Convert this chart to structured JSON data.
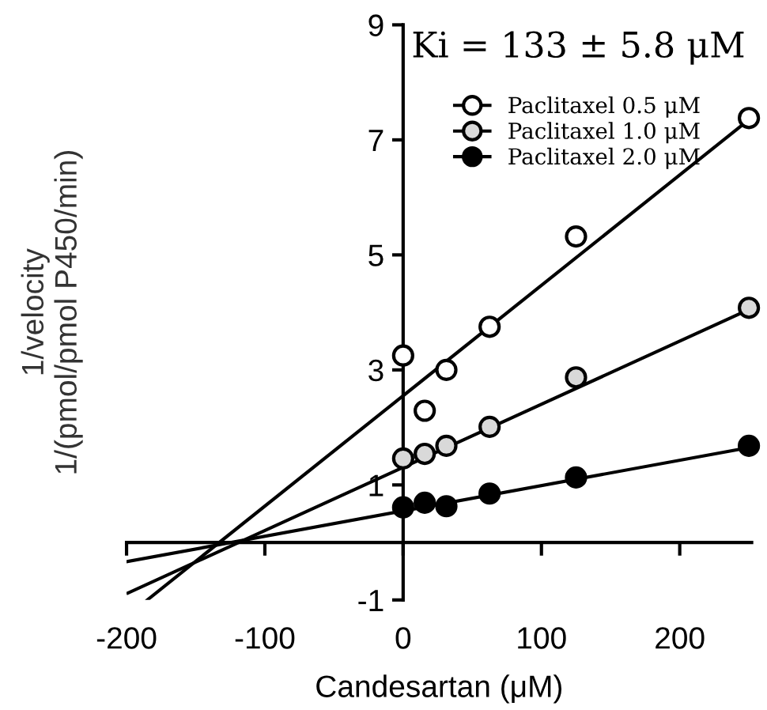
{
  "chart_data": {
    "type": "scatter",
    "xlabel": "Candesartan (μM)",
    "ylabel": "1/velocity\n1/(pmol/pmol P450/min)",
    "annotations": [
      "Ki = 133 ± 5.8 μM"
    ],
    "x": [
      0,
      15.6,
      31.25,
      62.5,
      125,
      250
    ],
    "series": [
      {
        "name": "Paclitaxel 0.5 μM",
        "color": "#ffffff",
        "values": [
          3.25,
          2.29,
          3.0,
          3.75,
          5.32,
          7.38
        ]
      },
      {
        "name": "Paclitaxel 1.0 μM",
        "color": "#d9d9d9",
        "values": [
          1.46,
          1.54,
          1.68,
          2.01,
          2.87,
          4.08
        ]
      },
      {
        "name": "Paclitaxel 2.0 μM",
        "color": "#000000",
        "values": [
          0.61,
          0.69,
          0.63,
          0.85,
          1.13,
          1.68
        ]
      },
      {
        "type": "line",
        "marker": "none",
        "color": "#000000",
        "x": [
          -185,
          250
        ],
        "values": [
          -1.0,
          7.35
        ]
      },
      {
        "type": "line",
        "marker": "none",
        "color": "#000000",
        "x": [
          -199,
          250
        ],
        "values": [
          -0.88,
          4.05
        ]
      },
      {
        "type": "line",
        "marker": "none",
        "color": "#000000",
        "x": [
          -199,
          250
        ],
        "values": [
          -0.33,
          1.65
        ]
      }
    ],
    "xlim": [
      -200,
      252
    ],
    "ylim": [
      -1,
      9
    ],
    "xticks": [
      -200,
      -100,
      0,
      100,
      200
    ],
    "yticks": [
      -1,
      1,
      3,
      5,
      7,
      9
    ],
    "grid": false,
    "legend": "top right",
    "marker": "circle",
    "line_style": "solid"
  }
}
